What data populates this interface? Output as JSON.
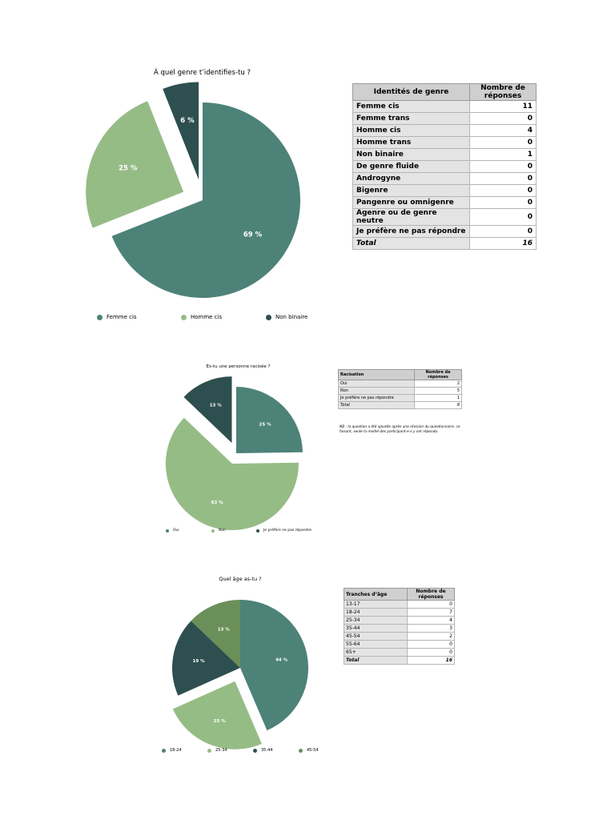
{
  "chart_data": [
    {
      "type": "pie",
      "title": "À quel genre t’identifies-tu ?",
      "categories": [
        "Femme cis",
        "Homme cis",
        "Non binaire"
      ],
      "values": [
        69,
        25,
        6
      ],
      "labels": [
        "69 %",
        "25 %",
        "6 %"
      ],
      "colors": [
        "#4d8279",
        "#96bc86",
        "#2e4f4f"
      ],
      "exploded": [
        "Homme cis",
        "Non binaire"
      ],
      "legend_position": "bottom"
    },
    {
      "type": "pie",
      "title": "Es-tu une personne racisée ?",
      "categories": [
        "Oui",
        "Non",
        "Je préfère ne pas répondre"
      ],
      "values": [
        25,
        63,
        13
      ],
      "labels": [
        "25 %",
        "63 %",
        "13 %"
      ],
      "colors": [
        "#4d8279",
        "#96bc86",
        "#2e4f4f"
      ],
      "exploded": [
        "Non",
        "Je préfère ne pas répondre"
      ],
      "legend_position": "bottom"
    },
    {
      "type": "pie",
      "title": "Quel âge as-tu ?",
      "categories": [
        "18-24",
        "25-34",
        "35-44",
        "45-54"
      ],
      "values": [
        44,
        25,
        19,
        13
      ],
      "labels": [
        "44 %",
        "25 %",
        "19 %",
        "13 %"
      ],
      "colors": [
        "#4d8279",
        "#96bc86",
        "#2e4f4f",
        "#6a8f58"
      ],
      "exploded": [
        "25-34"
      ],
      "legend_position": "bottom"
    },
    {
      "type": "table",
      "columns": [
        "Identités de genre",
        "Nombre de réponses"
      ],
      "rows": [
        [
          "Femme cis",
          "11"
        ],
        [
          "Femme trans",
          "0"
        ],
        [
          "Homme cis",
          "4"
        ],
        [
          "Homme trans",
          "0"
        ],
        [
          "Non binaire",
          "1"
        ],
        [
          "De genre fluide",
          "0"
        ],
        [
          "Androgyne",
          "0"
        ],
        [
          "Bigenre",
          "0"
        ],
        [
          "Pangenre ou omnigenre",
          "0"
        ],
        [
          "Agenre ou de genre neutre",
          "0"
        ],
        [
          "Je préfère ne pas répondre",
          "0"
        ]
      ],
      "total": [
        "Total",
        "16"
      ]
    },
    {
      "type": "table",
      "columns": [
        "Racisation",
        "Nombre de réponses"
      ],
      "rows": [
        [
          "Oui",
          "2"
        ],
        [
          "Non",
          "5"
        ],
        [
          "Je préfère ne pas répondre",
          "1"
        ]
      ],
      "total": [
        "Total",
        "8"
      ],
      "note": "NB : la question a été ajoutée après une révision du questionnaire, ce faisant, seule la moitié des participant-e-s y ont répondu."
    },
    {
      "type": "table",
      "columns": [
        "Tranches d’âge",
        "Nombre de réponses"
      ],
      "rows": [
        [
          "13-17",
          "0"
        ],
        [
          "18-24",
          "7"
        ],
        [
          "25-34",
          "4"
        ],
        [
          "35-44",
          "3"
        ],
        [
          "45-54",
          "2"
        ],
        [
          "55-64",
          "0"
        ],
        [
          "65+",
          "0"
        ]
      ],
      "total": [
        "Total",
        "16"
      ]
    }
  ]
}
